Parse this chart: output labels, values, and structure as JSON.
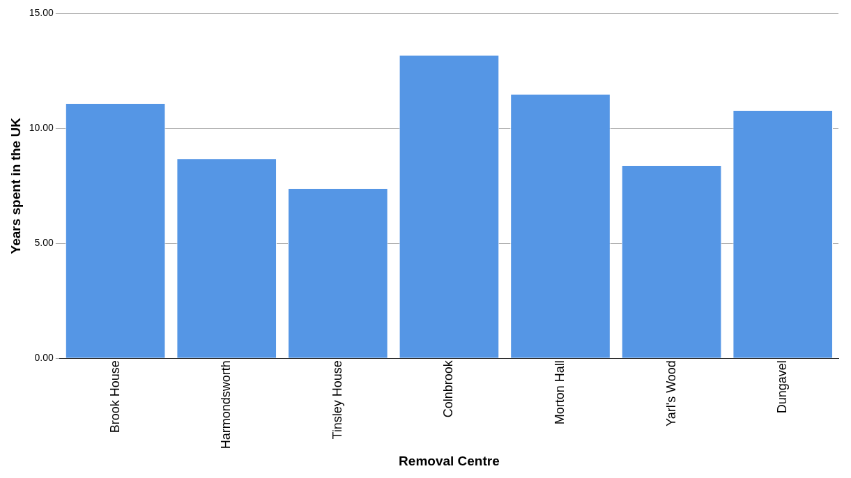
{
  "chart_data": {
    "type": "bar",
    "xlabel": "Removal Centre",
    "ylabel": "Years spent in the UK",
    "categories": [
      "Brook House",
      "Harmondsworth",
      "Tinsley House",
      "Colnbrook",
      "Morton Hall",
      "Yarl's Wood",
      "Dungavel"
    ],
    "values": [
      11.1,
      8.7,
      7.4,
      13.2,
      11.5,
      8.4,
      10.8
    ],
    "color": "#5596e5",
    "ylim": [
      0,
      15
    ],
    "yticks": [
      {
        "value": 0,
        "label": "0.00"
      },
      {
        "value": 5,
        "label": "5.00"
      },
      {
        "value": 10,
        "label": "10.00"
      },
      {
        "value": 15,
        "label": "15.00"
      }
    ],
    "grid": "y"
  }
}
